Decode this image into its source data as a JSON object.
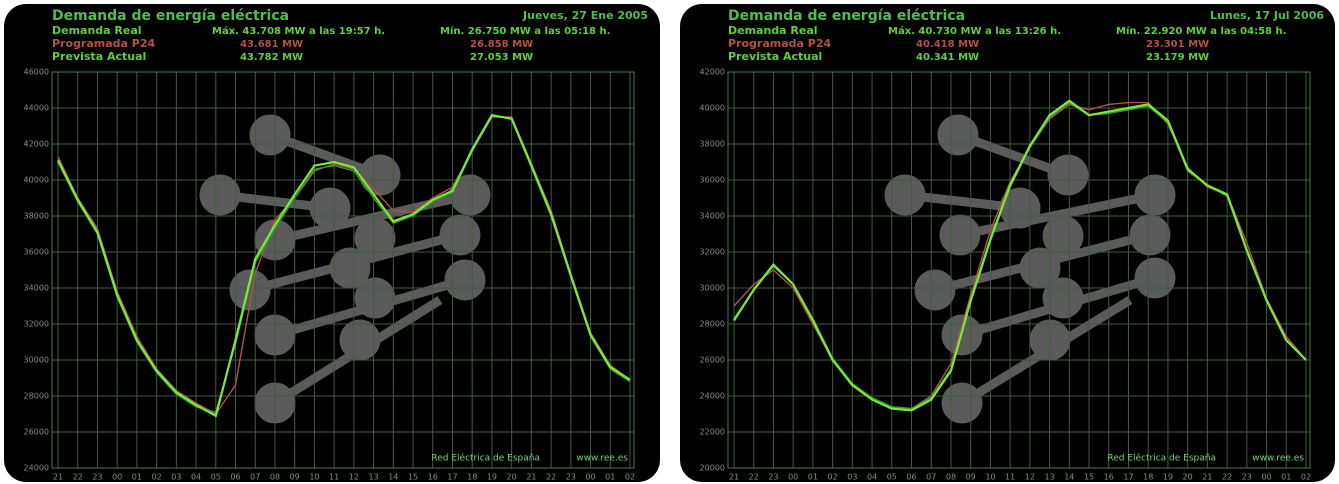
{
  "chart_data": [
    {
      "type": "line",
      "title": "Demanda de energía eléctrica",
      "date": "Jueves, 27 Ene 2005",
      "categories": [
        "21",
        "22",
        "23",
        "00",
        "01",
        "02",
        "03",
        "04",
        "05",
        "06",
        "07",
        "08",
        "09",
        "10",
        "11",
        "12",
        "13",
        "14",
        "15",
        "16",
        "17",
        "18",
        "19",
        "20",
        "21",
        "22",
        "23",
        "00",
        "01",
        "02"
      ],
      "series": [
        {
          "name": "Programada P24",
          "color": "#b0524a",
          "stats": [
            "43.681 MW",
            "26.858 MW"
          ],
          "values": [
            41300,
            39000,
            37300,
            33800,
            31300,
            29500,
            28300,
            27600,
            27000,
            28600,
            34800,
            37800,
            39000,
            40500,
            40900,
            40600,
            39500,
            38300,
            38200,
            39000,
            39600,
            41600,
            43500,
            43500,
            40900,
            38300,
            34800,
            31500,
            29700,
            28900
          ]
        },
        {
          "name": "Prevista Actual",
          "color": "#2f9e2f",
          "stats": [
            "43.782 MW",
            "27.053 MW"
          ],
          "values": [
            41000,
            38800,
            37000,
            33500,
            31000,
            29300,
            28100,
            27400,
            27100,
            30900,
            35400,
            37300,
            39000,
            40600,
            40800,
            40500,
            39000,
            37600,
            38000,
            38800,
            39300,
            41600,
            43600,
            43400,
            40700,
            38000,
            34600,
            31300,
            29500,
            28800
          ]
        },
        {
          "name": "Demanda Real",
          "color": "#7ee83a",
          "stats": [
            "Máx. 43.708 MW  a las 19:57 h.",
            "Mín. 26.750 MW  a las 05:18 h."
          ],
          "values": [
            41100,
            38900,
            37100,
            33600,
            31100,
            29400,
            28200,
            27500,
            26900,
            31100,
            35600,
            37500,
            39200,
            40800,
            41000,
            40700,
            39200,
            37700,
            38100,
            38900,
            39400,
            41700,
            43600,
            43400,
            40800,
            38100,
            34700,
            31400,
            29600,
            28900
          ]
        }
      ],
      "ylim": [
        24000,
        46000
      ],
      "yticks": [
        24000,
        26000,
        28000,
        30000,
        32000,
        34000,
        36000,
        38000,
        40000,
        42000,
        44000,
        46000
      ],
      "grid": true,
      "source": "Red Eléctrica de España",
      "url": "www.ree.es"
    },
    {
      "type": "line",
      "title": "Demanda de energía eléctrica",
      "date": "Lunes, 17 Jul 2006",
      "categories": [
        "21",
        "22",
        "23",
        "00",
        "01",
        "02",
        "03",
        "04",
        "05",
        "06",
        "07",
        "08",
        "09",
        "10",
        "11",
        "12",
        "13",
        "14",
        "15",
        "16",
        "17",
        "18",
        "19",
        "20",
        "21",
        "22",
        "23",
        "00",
        "01",
        "02"
      ],
      "series": [
        {
          "name": "Programada P24",
          "color": "#b0524a",
          "stats": [
            "40.418 MW",
            "23.301 MW"
          ],
          "values": [
            29000,
            30200,
            31000,
            30000,
            28000,
            26000,
            24600,
            23900,
            23400,
            23300,
            24000,
            25800,
            29600,
            33200,
            35900,
            37800,
            39400,
            40200,
            39900,
            40200,
            40300,
            40300,
            39100,
            36700,
            35600,
            35200,
            32500,
            29400,
            27300,
            26000
          ]
        },
        {
          "name": "Prevista Actual",
          "color": "#2f9e2f",
          "stats": [
            "40.341 MW",
            "23.179 MW"
          ],
          "values": [
            28300,
            29900,
            31200,
            30200,
            28300,
            26100,
            24700,
            23900,
            23400,
            23300,
            23900,
            25500,
            29200,
            32600,
            35600,
            37800,
            39500,
            40300,
            39600,
            39700,
            39900,
            40100,
            39200,
            36500,
            35700,
            35100,
            32000,
            29300,
            27100,
            26000
          ]
        },
        {
          "name": "Demanda Real",
          "color": "#7ee83a",
          "stats": [
            "Máx. 40.730 MW  a las 13:26 h.",
            "Mín. 22.920 MW  a las 04:58 h."
          ],
          "values": [
            28200,
            29900,
            31300,
            30200,
            28200,
            26000,
            24600,
            23800,
            23300,
            23200,
            23800,
            25400,
            29300,
            32700,
            35700,
            37900,
            39600,
            40400,
            39600,
            39800,
            40000,
            40200,
            39300,
            36600,
            35700,
            35200,
            32100,
            29300,
            27100,
            26000
          ]
        }
      ],
      "ylim": [
        20000,
        42000
      ],
      "yticks": [
        20000,
        22000,
        24000,
        26000,
        28000,
        30000,
        32000,
        34000,
        36000,
        38000,
        40000,
        42000
      ],
      "grid": true,
      "source": "Red Eléctrica de España",
      "url": "www.ree.es"
    }
  ]
}
